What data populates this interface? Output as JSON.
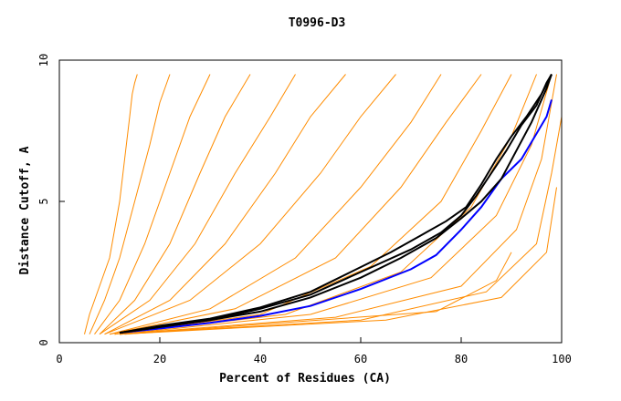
{
  "chart_data": {
    "type": "line",
    "title": "T0996-D3",
    "xlabel": "Percent of Residues (CA)",
    "ylabel": "Distance Cutoff, A",
    "xlim": [
      0,
      100
    ],
    "ylim": [
      0,
      10
    ],
    "x_ticks": [
      "0",
      "20",
      "40",
      "60",
      "80",
      "100"
    ],
    "y_ticks": [
      "0",
      "5",
      "10"
    ],
    "grid": false,
    "legend": "none",
    "colors": {
      "background": "#ffffff",
      "other_models": "#ff8c00",
      "highlight_black": "#000000",
      "highlight_blue": "#0000ff"
    },
    "series": [
      {
        "color": "#ff8c00",
        "style": "background",
        "x": [
          5,
          6,
          8,
          10,
          12,
          13,
          14,
          14.5,
          15,
          15.5
        ],
        "y": [
          0.3,
          1,
          2,
          3,
          5,
          6.5,
          8,
          8.8,
          9.2,
          9.5
        ]
      },
      {
        "color": "#ff8c00",
        "style": "background",
        "x": [
          6,
          9,
          12,
          15,
          18,
          20,
          22
        ],
        "y": [
          0.3,
          1.5,
          3,
          5,
          7,
          8.5,
          9.5
        ]
      },
      {
        "color": "#ff8c00",
        "style": "background",
        "x": [
          7,
          12,
          17,
          22,
          26,
          30
        ],
        "y": [
          0.3,
          1.5,
          3.5,
          6,
          8,
          9.5
        ]
      },
      {
        "color": "#ff8c00",
        "style": "background",
        "x": [
          8,
          15,
          22,
          28,
          33,
          38
        ],
        "y": [
          0.3,
          1.5,
          3.5,
          6,
          8,
          9.5
        ]
      },
      {
        "color": "#ff8c00",
        "style": "background",
        "x": [
          8,
          18,
          27,
          35,
          42,
          47
        ],
        "y": [
          0.3,
          1.5,
          3.5,
          6,
          8,
          9.5
        ]
      },
      {
        "color": "#ff8c00",
        "style": "background",
        "x": [
          9,
          22,
          33,
          43,
          50,
          57
        ],
        "y": [
          0.3,
          1.5,
          3.5,
          6,
          8,
          9.5
        ]
      },
      {
        "color": "#ff8c00",
        "style": "background",
        "x": [
          9,
          26,
          40,
          52,
          60,
          67
        ],
        "y": [
          0.3,
          1.5,
          3.5,
          6,
          8,
          9.5
        ]
      },
      {
        "color": "#ff8c00",
        "style": "background",
        "x": [
          10,
          30,
          47,
          60,
          70,
          76
        ],
        "y": [
          0.3,
          1.2,
          3,
          5.5,
          7.8,
          9.5
        ]
      },
      {
        "color": "#ff8c00",
        "style": "background",
        "x": [
          10,
          35,
          55,
          68,
          77,
          84
        ],
        "y": [
          0.3,
          1.2,
          3,
          5.5,
          7.8,
          9.5
        ]
      },
      {
        "color": "#ff8c00",
        "style": "background",
        "x": [
          11,
          40,
          62,
          76,
          84,
          90
        ],
        "y": [
          0.3,
          1,
          2.7,
          5,
          7.5,
          9.5
        ]
      },
      {
        "color": "#ff8c00",
        "style": "background",
        "x": [
          11,
          45,
          68,
          82,
          90,
          95
        ],
        "y": [
          0.3,
          1,
          2.5,
          4.8,
          7.3,
          9.5
        ]
      },
      {
        "color": "#ff8c00",
        "style": "background",
        "x": [
          12,
          50,
          74,
          87,
          94,
          98
        ],
        "y": [
          0.3,
          1,
          2.3,
          4.5,
          7,
          9.5
        ]
      },
      {
        "color": "#ff8c00",
        "style": "background",
        "x": [
          12,
          55,
          80,
          91,
          96,
          99
        ],
        "y": [
          0.3,
          0.9,
          2,
          4,
          6.5,
          9.5
        ]
      },
      {
        "color": "#ff8c00",
        "style": "background",
        "x": [
          12,
          60,
          85,
          95,
          98,
          100
        ],
        "y": [
          0.3,
          0.8,
          1.8,
          3.5,
          6,
          8
        ]
      },
      {
        "color": "#ff8c00",
        "style": "background",
        "x": [
          12,
          65,
          88,
          97,
          99
        ],
        "y": [
          0.3,
          0.8,
          1.6,
          3.2,
          5.5
        ]
      },
      {
        "color": "#ff8c00",
        "style": "background",
        "x": [
          13,
          75,
          87,
          90
        ],
        "y": [
          0.3,
          1.1,
          2.2,
          3.2
        ]
      },
      {
        "color": "#0000ff",
        "style": "highlight",
        "x": [
          12,
          20,
          30,
          40,
          50,
          60,
          70,
          75,
          80,
          84,
          88,
          92,
          95,
          97,
          98
        ],
        "y": [
          0.35,
          0.5,
          0.7,
          0.95,
          1.3,
          1.9,
          2.6,
          3.1,
          4.0,
          4.8,
          5.8,
          6.5,
          7.4,
          8.0,
          8.6
        ]
      },
      {
        "color": "#000000",
        "style": "highlight",
        "x": [
          12,
          20,
          30,
          40,
          50,
          60,
          68,
          75,
          80,
          84,
          88,
          91,
          94,
          97,
          98
        ],
        "y": [
          0.35,
          0.55,
          0.8,
          1.1,
          1.6,
          2.3,
          3.0,
          3.7,
          4.4,
          5.0,
          5.8,
          6.8,
          7.8,
          9.0,
          9.5
        ]
      },
      {
        "color": "#000000",
        "style": "highlight",
        "x": [
          12,
          20,
          30,
          40,
          50,
          60,
          70,
          76,
          80,
          83,
          86,
          89,
          92,
          95,
          97,
          98
        ],
        "y": [
          0.35,
          0.55,
          0.8,
          1.2,
          1.7,
          2.5,
          3.3,
          3.9,
          4.5,
          5.2,
          6.0,
          6.8,
          7.7,
          8.4,
          9.2,
          9.5
        ]
      },
      {
        "color": "#000000",
        "style": "highlight",
        "x": [
          12,
          20,
          30,
          40,
          50,
          58,
          66,
          72,
          77,
          81,
          84,
          87,
          90,
          93,
          96,
          98
        ],
        "y": [
          0.35,
          0.6,
          0.85,
          1.25,
          1.8,
          2.5,
          3.2,
          3.8,
          4.3,
          4.8,
          5.6,
          6.5,
          7.3,
          8.0,
          8.8,
          9.5
        ]
      }
    ]
  }
}
